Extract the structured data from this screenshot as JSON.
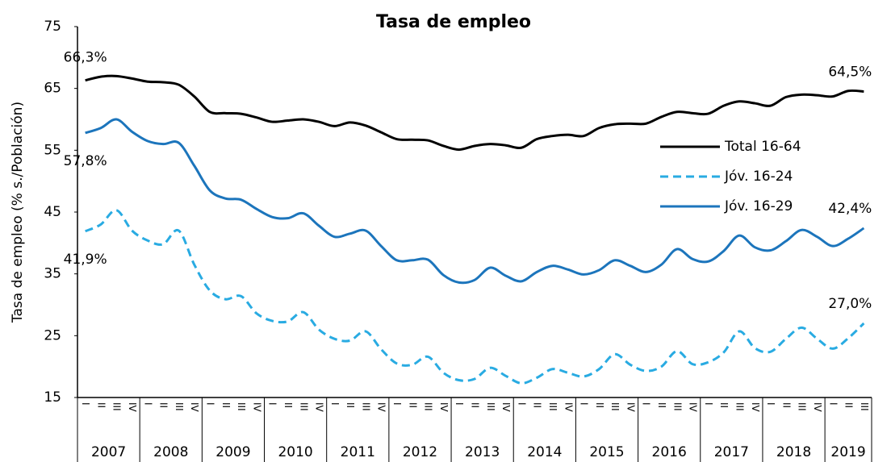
{
  "chart_data": {
    "type": "line",
    "title": "Tasa de empleo",
    "y_label": "Tasa de empleo (% s./Población)",
    "ylim": [
      15,
      75
    ],
    "yticks": [
      15,
      25,
      35,
      45,
      55,
      65,
      75
    ],
    "grid": false,
    "legend": "right",
    "categories": [
      "I",
      "II",
      "III",
      "IV",
      "I",
      "II",
      "III",
      "IV",
      "I",
      "II",
      "III",
      "IV",
      "I",
      "II",
      "III",
      "IV",
      "I",
      "II",
      "III",
      "IV",
      "I",
      "II",
      "III",
      "IV",
      "I",
      "II",
      "III",
      "IV",
      "I",
      "II",
      "III",
      "IV",
      "I",
      "II",
      "III",
      "IV",
      "I",
      "II",
      "III",
      "IV",
      "I",
      "II",
      "III",
      "IV",
      "I",
      "II",
      "III",
      "IV",
      "I",
      "II",
      "III"
    ],
    "years": [
      "2007",
      "2008",
      "2009",
      "2010",
      "2011",
      "2012",
      "2013",
      "2014",
      "2015",
      "2016",
      "2017",
      "2018",
      "2019"
    ],
    "series": [
      {
        "name": "Total 16-64",
        "color": "#000000",
        "dash": false,
        "values": [
          66.3,
          66.9,
          67.0,
          66.6,
          66.1,
          66.0,
          65.6,
          63.7,
          61.2,
          61.0,
          60.9,
          60.3,
          59.6,
          59.8,
          60.0,
          59.6,
          58.9,
          59.5,
          59.0,
          57.9,
          56.8,
          56.7,
          56.6,
          55.7,
          55.1,
          55.7,
          56.0,
          55.8,
          55.4,
          56.8,
          57.3,
          57.5,
          57.3,
          58.6,
          59.2,
          59.3,
          59.3,
          60.4,
          61.2,
          61.0,
          60.9,
          62.2,
          62.9,
          62.6,
          62.2,
          63.6,
          64.0,
          63.9,
          63.7,
          64.6,
          64.5
        ],
        "value_labels": [
          "66,3%",
          null,
          null,
          null,
          null,
          null,
          null,
          null,
          null,
          null,
          null,
          null,
          null,
          null,
          null,
          null,
          null,
          null,
          null,
          null,
          null,
          null,
          null,
          null,
          null,
          null,
          null,
          null,
          null,
          null,
          null,
          null,
          null,
          null,
          null,
          null,
          null,
          null,
          null,
          null,
          null,
          null,
          null,
          null,
          null,
          null,
          null,
          null,
          null,
          null,
          "64,5%"
        ]
      },
      {
        "name": "Jóv. 16-24",
        "color": "#29abe2",
        "dash": true,
        "values": [
          41.9,
          43.0,
          45.3,
          42.0,
          40.4,
          39.8,
          42.0,
          36.5,
          32.3,
          30.9,
          31.4,
          28.6,
          27.4,
          27.3,
          28.8,
          26.0,
          24.5,
          24.2,
          25.7,
          22.8,
          20.5,
          20.3,
          21.6,
          19.0,
          17.8,
          18.0,
          19.8,
          18.5,
          17.3,
          18.2,
          19.6,
          19.0,
          18.4,
          19.6,
          22.0,
          20.3,
          19.3,
          20.0,
          22.5,
          20.4,
          20.7,
          22.3,
          25.7,
          23.0,
          22.4,
          24.5,
          26.3,
          24.5,
          22.9,
          24.6,
          27.0
        ],
        "value_labels": [
          "41,9%",
          null,
          null,
          null,
          null,
          null,
          null,
          null,
          null,
          null,
          null,
          null,
          null,
          null,
          null,
          null,
          null,
          null,
          null,
          null,
          null,
          null,
          null,
          null,
          null,
          null,
          null,
          null,
          null,
          null,
          null,
          null,
          null,
          null,
          null,
          null,
          null,
          null,
          null,
          null,
          null,
          null,
          null,
          null,
          null,
          null,
          null,
          null,
          null,
          null,
          "27,0%"
        ]
      },
      {
        "name": "Jóv. 16-29",
        "color": "#1c75bc",
        "dash": false,
        "values": [
          57.8,
          58.6,
          60.0,
          58.0,
          56.5,
          56.0,
          56.2,
          52.5,
          48.5,
          47.2,
          47.0,
          45.5,
          44.2,
          44.0,
          44.8,
          42.8,
          41.0,
          41.5,
          42.0,
          39.5,
          37.2,
          37.2,
          37.3,
          34.8,
          33.6,
          34.0,
          36.0,
          34.7,
          33.8,
          35.3,
          36.3,
          35.7,
          34.9,
          35.6,
          37.2,
          36.3,
          35.3,
          36.5,
          39.0,
          37.4,
          37.0,
          38.7,
          41.2,
          39.3,
          38.8,
          40.3,
          42.1,
          41.0,
          39.5,
          40.7,
          42.4
        ],
        "value_labels": [
          "57,8%",
          null,
          null,
          null,
          null,
          null,
          null,
          null,
          null,
          null,
          null,
          null,
          null,
          null,
          null,
          null,
          null,
          null,
          null,
          null,
          null,
          null,
          null,
          null,
          null,
          null,
          null,
          null,
          null,
          null,
          null,
          null,
          null,
          null,
          null,
          null,
          null,
          null,
          null,
          null,
          null,
          null,
          null,
          null,
          null,
          null,
          null,
          null,
          null,
          null,
          "42,4%"
        ]
      }
    ]
  }
}
